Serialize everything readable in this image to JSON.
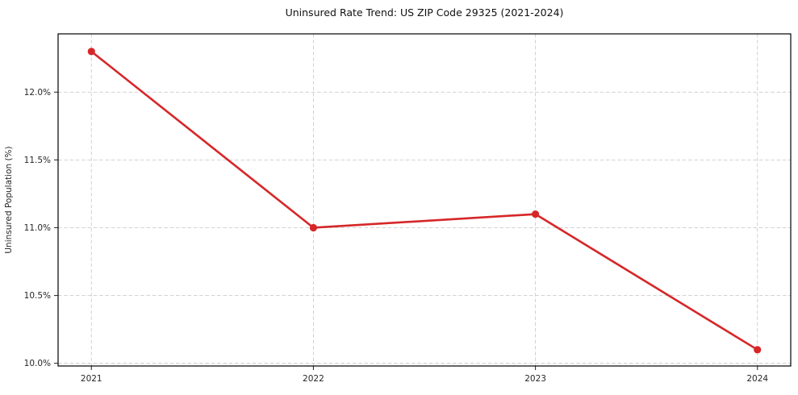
{
  "chart_data": {
    "type": "line",
    "title": "Uninsured Rate Trend: US ZIP Code 29325 (2021-2024)",
    "xlabel": "",
    "ylabel": "Uninsured Population (%)",
    "x": [
      2021,
      2022,
      2023,
      2024
    ],
    "series": [
      {
        "name": "uninsured-rate",
        "values": [
          12.3,
          11.0,
          11.1,
          10.1
        ]
      }
    ],
    "xticks": [
      {
        "value": 2021,
        "label": "2021"
      },
      {
        "value": 2022,
        "label": "2022"
      },
      {
        "value": 2023,
        "label": "2023"
      },
      {
        "value": 2024,
        "label": "2024"
      }
    ],
    "yticks": [
      {
        "value": 10.0,
        "label": "10.0%"
      },
      {
        "value": 10.5,
        "label": "10.5%"
      },
      {
        "value": 11.0,
        "label": "11.0%"
      },
      {
        "value": 11.5,
        "label": "11.5%"
      },
      {
        "value": 12.0,
        "label": "12.0%"
      }
    ],
    "xlim": [
      2020.85,
      2024.15
    ],
    "ylim": [
      9.98,
      12.43
    ],
    "grid": true,
    "grid_style": "dashed",
    "legend": "none",
    "colors": {
      "line": "#d62728",
      "marker": "#d62728",
      "grid": "#cccccc",
      "spine": "#000000",
      "tick": "#333333",
      "text": "#262626",
      "background": "#ffffff"
    }
  }
}
